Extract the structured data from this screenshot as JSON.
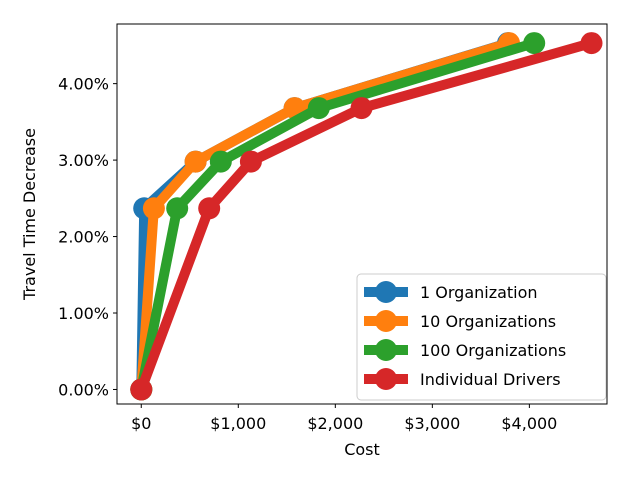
{
  "chart_data": {
    "type": "line",
    "title": "",
    "xlabel": "Cost",
    "ylabel": "Travel Time Decrease",
    "xlim": [
      -250,
      4800
    ],
    "ylim": [
      -0.0019,
      0.0478
    ],
    "xticks": [
      0,
      1000,
      2000,
      3000,
      4000
    ],
    "xtick_labels": [
      "$0",
      "$1,000",
      "$2,000",
      "$3,000",
      "$4,000"
    ],
    "yticks": [
      0.0,
      0.01,
      0.02,
      0.03,
      0.04
    ],
    "ytick_labels": [
      "0.00%",
      "1.00%",
      "2.00%",
      "3.00%",
      "4.00%"
    ],
    "grid": false,
    "legend_position": "lower-right",
    "series": [
      {
        "name": "1 Organization",
        "color": "#1f77b4",
        "points": [
          [
            0,
            0.0
          ],
          [
            30,
            0.0237
          ],
          [
            560,
            0.0298
          ],
          [
            1580,
            0.0368
          ],
          [
            3780,
            0.0453
          ]
        ]
      },
      {
        "name": "10 Organizations",
        "color": "#ff7f0e",
        "points": [
          [
            0,
            0.0
          ],
          [
            130,
            0.0237
          ],
          [
            560,
            0.0298
          ],
          [
            1580,
            0.0368
          ],
          [
            3790,
            0.0453
          ]
        ]
      },
      {
        "name": "100 Organizations",
        "color": "#2ca02c",
        "points": [
          [
            0,
            0.0
          ],
          [
            370,
            0.0237
          ],
          [
            820,
            0.0298
          ],
          [
            1830,
            0.0368
          ],
          [
            4050,
            0.0453
          ]
        ]
      },
      {
        "name": "Individual Drivers",
        "color": "#d62728",
        "points": [
          [
            0,
            0.0
          ],
          [
            700,
            0.0237
          ],
          [
            1130,
            0.0298
          ],
          [
            2270,
            0.0368
          ],
          [
            4640,
            0.0453
          ]
        ]
      }
    ]
  }
}
